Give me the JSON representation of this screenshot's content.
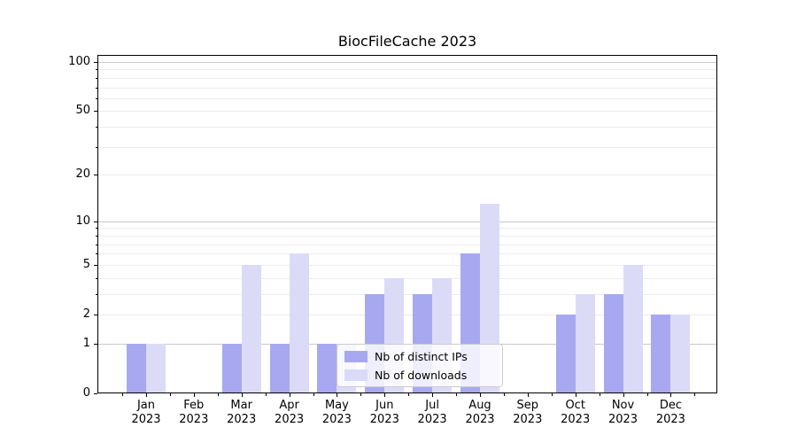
{
  "title": "BiocFileCache 2023",
  "chart_data": {
    "type": "bar",
    "title": "BiocFileCache 2023",
    "yscale": "log1p",
    "grid": "horizontal",
    "legend_position": "lower center",
    "year": "2023",
    "months": [
      "Jan",
      "Feb",
      "Mar",
      "Apr",
      "May",
      "Jun",
      "Jul",
      "Aug",
      "Sep",
      "Oct",
      "Nov",
      "Dec"
    ],
    "categories": [
      "Jan 2023",
      "Feb 2023",
      "Mar 2023",
      "Apr 2023",
      "May 2023",
      "Jun 2023",
      "Jul 2023",
      "Aug 2023",
      "Sep 2023",
      "Oct 2023",
      "Nov 2023",
      "Dec 2023"
    ],
    "y_ticks": [
      0,
      1,
      2,
      5,
      10,
      20,
      50,
      100
    ],
    "y_major_gridlines": [
      1,
      10,
      100
    ],
    "y_minor_gridlines": [
      2,
      3,
      4,
      5,
      6,
      7,
      8,
      9,
      20,
      30,
      40,
      50,
      60,
      70,
      80,
      90
    ],
    "ylim": [
      0,
      110
    ],
    "series": [
      {
        "name": "Nb of distinct IPs",
        "slug": "distinct-ips",
        "color": "#a8a8f1",
        "values": [
          1,
          0,
          1,
          1,
          1,
          3,
          3,
          6,
          0,
          2,
          3,
          2
        ]
      },
      {
        "name": "Nb of downloads",
        "slug": "downloads",
        "color": "#dbdbf8",
        "values": [
          1,
          0,
          5,
          6,
          1,
          4,
          4,
          13,
          0,
          3,
          5,
          2
        ]
      }
    ]
  },
  "colors": {
    "background": "#ffffff",
    "spine": "#000000",
    "major_grid": "#c9c9c9",
    "minor_grid": "#ececec",
    "legend_border": "#cccccc",
    "text": "#000000"
  }
}
